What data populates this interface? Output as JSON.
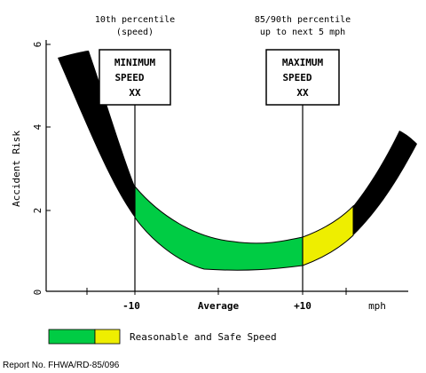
{
  "y_axis": {
    "label": "Accident Risk",
    "ticks": [
      "0",
      "2",
      "4",
      "6"
    ]
  },
  "x_axis": {
    "ticks": [
      "-10",
      "Average",
      "+10"
    ],
    "unit": "mph"
  },
  "min_header": {
    "line1": "10th percentile",
    "line2": "(speed)"
  },
  "max_header": {
    "line1": "85/90th percentile",
    "line2": "up to next 5 mph"
  },
  "min_sign": {
    "line1": "MINIMUM",
    "line2": "SPEED",
    "line3": "XX"
  },
  "max_sign": {
    "line1": "MAXIMUM",
    "line2": "SPEED",
    "line3": "XX"
  },
  "legend": {
    "label": "Reasonable and Safe Speed"
  },
  "footer": {
    "report_no": "Report No. FHWA/RD-85/096"
  },
  "colors": {
    "risk_band": "#000000",
    "safe_band": "#00cc44",
    "marginal_band": "#eeee00"
  }
}
